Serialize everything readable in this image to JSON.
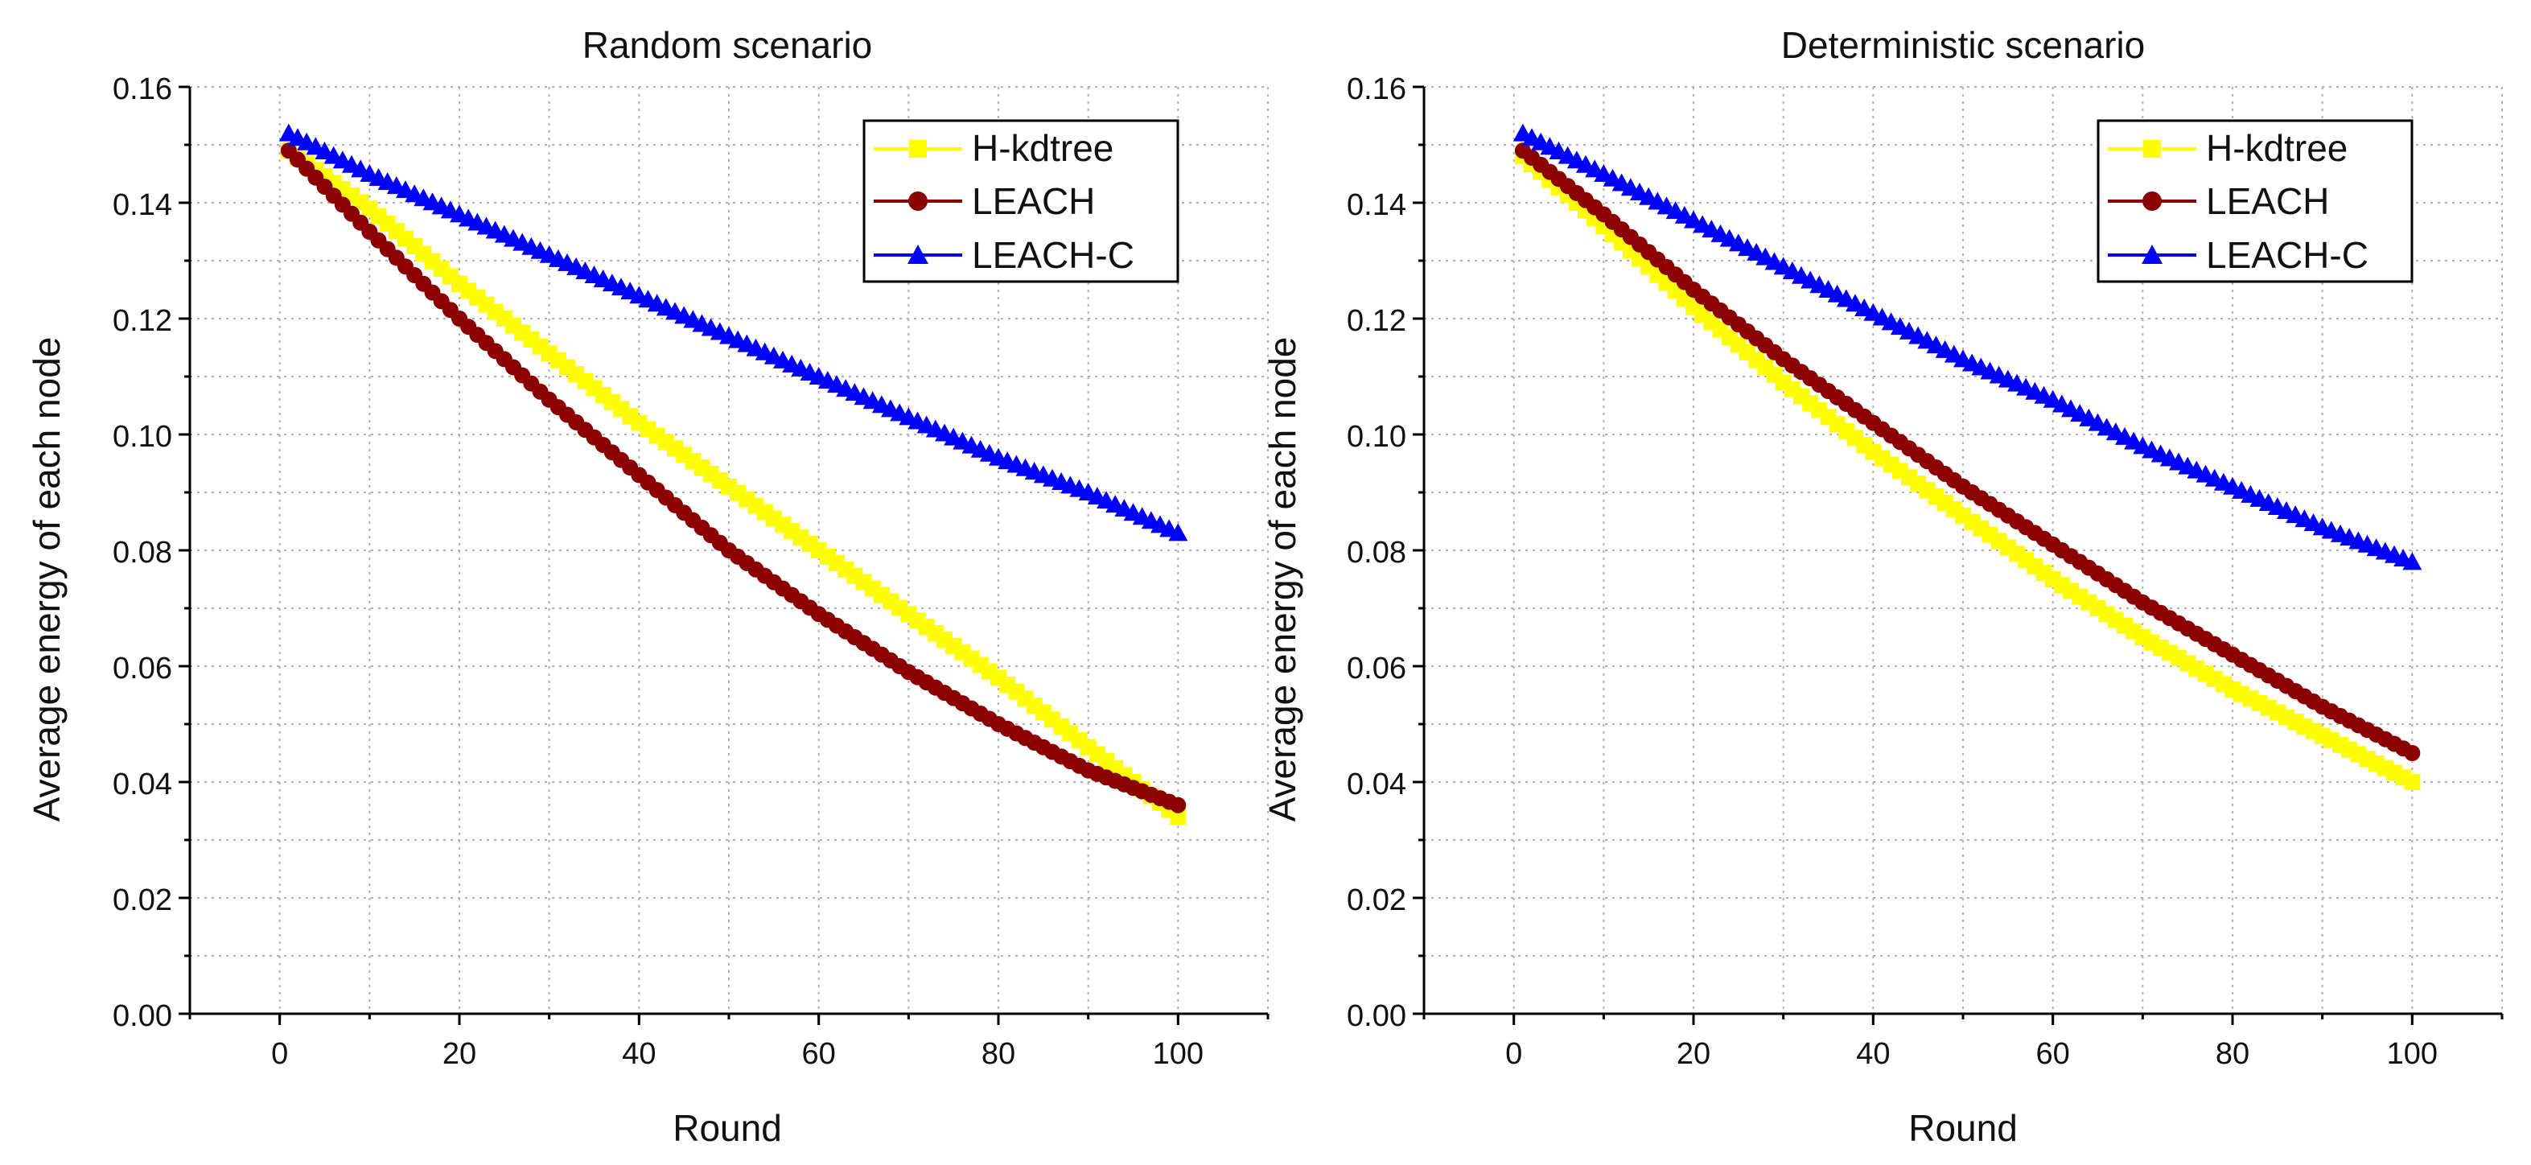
{
  "chart_data": [
    {
      "type": "line",
      "title": "Random scenario",
      "xlabel": "Round",
      "ylabel": "Average energy of each node",
      "xlim": [
        -10,
        110
      ],
      "ylim": [
        0.0,
        0.16
      ],
      "xticks": [
        0,
        20,
        40,
        60,
        80,
        100
      ],
      "yticks": [
        0.0,
        0.02,
        0.04,
        0.06,
        0.08,
        0.1,
        0.12,
        0.14,
        0.16
      ],
      "xtick_labels": [
        "0",
        "20",
        "40",
        "60",
        "80",
        "100"
      ],
      "ytick_labels": [
        "0.00",
        "0.02",
        "0.04",
        "0.06",
        "0.08",
        "0.10",
        "0.12",
        "0.14",
        "0.16"
      ],
      "grid": true,
      "legend_position": "top-right",
      "x": [
        1,
        10,
        20,
        30,
        40,
        50,
        60,
        70,
        80,
        90,
        100
      ],
      "series": [
        {
          "name": "H-kdtree",
          "marker": "square",
          "color": "#ffff00",
          "values": [
            0.149,
            0.139,
            0.126,
            0.114,
            0.102,
            0.091,
            0.08,
            0.069,
            0.058,
            0.046,
            0.034
          ]
        },
        {
          "name": "LEACH",
          "marker": "circle",
          "color": "#8b0000",
          "values": [
            0.149,
            0.135,
            0.12,
            0.106,
            0.093,
            0.08,
            0.069,
            0.059,
            0.05,
            0.042,
            0.036
          ]
        },
        {
          "name": "LEACH-C",
          "marker": "triangle",
          "color": "#0000ff",
          "values": [
            0.152,
            0.145,
            0.138,
            0.131,
            0.124,
            0.117,
            0.11,
            0.103,
            0.096,
            0.09,
            0.083
          ]
        }
      ]
    },
    {
      "type": "line",
      "title": "Deterministic scenario",
      "xlabel": "Round",
      "ylabel": "Average energy of each node",
      "xlim": [
        -10,
        110
      ],
      "ylim": [
        0.0,
        0.16
      ],
      "xticks": [
        0,
        20,
        40,
        60,
        80,
        100
      ],
      "yticks": [
        0.0,
        0.02,
        0.04,
        0.06,
        0.08,
        0.1,
        0.12,
        0.14,
        0.16
      ],
      "xtick_labels": [
        "0",
        "20",
        "40",
        "60",
        "80",
        "100"
      ],
      "ytick_labels": [
        "0.00",
        "0.02",
        "0.04",
        "0.06",
        "0.08",
        "0.10",
        "0.12",
        "0.14",
        "0.16"
      ],
      "grid": true,
      "legend_position": "top-right",
      "x": [
        1,
        10,
        20,
        30,
        40,
        50,
        60,
        70,
        80,
        90,
        100
      ],
      "series": [
        {
          "name": "H-kdtree",
          "marker": "square",
          "color": "#ffff00",
          "values": [
            0.148,
            0.136,
            0.122,
            0.109,
            0.097,
            0.086,
            0.075,
            0.065,
            0.056,
            0.048,
            0.04
          ]
        },
        {
          "name": "LEACH",
          "marker": "circle",
          "color": "#8b0000",
          "values": [
            0.149,
            0.138,
            0.125,
            0.113,
            0.102,
            0.091,
            0.081,
            0.071,
            0.062,
            0.053,
            0.045
          ]
        },
        {
          "name": "LEACH-C",
          "marker": "triangle",
          "color": "#0000ff",
          "values": [
            0.152,
            0.145,
            0.137,
            0.129,
            0.121,
            0.113,
            0.106,
            0.098,
            0.091,
            0.084,
            0.078
          ]
        }
      ]
    }
  ]
}
